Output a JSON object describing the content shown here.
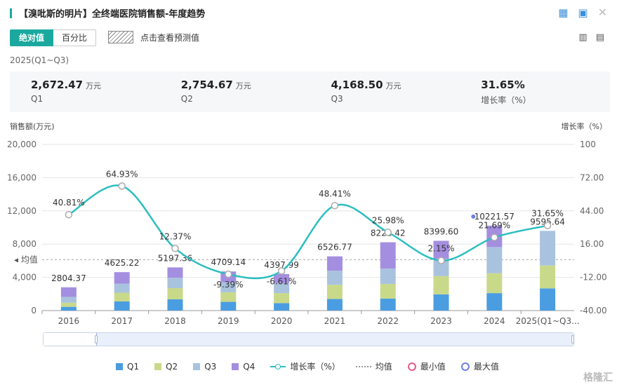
{
  "header": {
    "title": "【溴吡斯的明片】全终端医院销售额-年度趋势",
    "icons": [
      "excel-icon",
      "image-icon",
      "close-icon"
    ]
  },
  "toolbar": {
    "tab_absolute": "绝对值",
    "tab_percent": "百分比",
    "forecast_label": "点击查看预测值",
    "icons": [
      "bar-chart-icon",
      "table-icon"
    ]
  },
  "period": "2025(Q1~Q3)",
  "summary": [
    {
      "value": "2,672.47",
      "unit": "万元",
      "label": "Q1"
    },
    {
      "value": "2,754.67",
      "unit": "万元",
      "label": "Q2"
    },
    {
      "value": "4,168.50",
      "unit": "万元",
      "label": "Q3"
    },
    {
      "value": "31.65%",
      "unit": "",
      "label": "增长率（%）"
    }
  ],
  "axis": {
    "left_title": "销售额(万元)",
    "right_title": "增长率（%）",
    "left_ticks": [
      "0",
      "4,000",
      "8,000",
      "12,000",
      "16,000",
      "20,000"
    ],
    "right_ticks": [
      "-40.00",
      "-12.00",
      "16.00",
      "44.00",
      "72.00",
      "100"
    ],
    "avg_label": "均值"
  },
  "chart_data": {
    "type": "bar",
    "categories": [
      "2016",
      "2017",
      "2018",
      "2019",
      "2020",
      "2021",
      "2022",
      "2023",
      "2024",
      "2025(Q1~Q3..."
    ],
    "ylim": [
      0,
      20000
    ],
    "y2lim": [
      -40,
      100
    ],
    "series": [
      {
        "name": "Q1",
        "color": "#4a9de0",
        "values": [
          450,
          1100,
          1350,
          1050,
          900,
          1400,
          1450,
          1950,
          2100,
          2672.47
        ]
      },
      {
        "name": "Q2",
        "color": "#c9d98a",
        "values": [
          500,
          1050,
          1350,
          1150,
          1200,
          1700,
          1750,
          2200,
          2400,
          2754.67
        ]
      },
      {
        "name": "Q3",
        "color": "#a9c3de",
        "values": [
          700,
          1100,
          1250,
          1200,
          1200,
          1700,
          1850,
          2100,
          3150,
          4168.5
        ]
      },
      {
        "name": "Q4",
        "color": "#a48ee0",
        "values": [
          1154.37,
          1375.22,
          1247.36,
          1309.14,
          1097.99,
          1726.77,
          3172.42,
          2149.6,
          2571.57,
          0
        ]
      }
    ],
    "totals": [
      2804.37,
      4625.22,
      5197.36,
      4709.14,
      4397.99,
      6526.77,
      8222.42,
      8399.6,
      10221.57,
      9595.64
    ],
    "total_labels": [
      "2804.37",
      "4625.22",
      "5197.36",
      "4709.14",
      "4397.99",
      "6526.77",
      "8222.42",
      "8399.60",
      "10221.57",
      "9595.64"
    ],
    "growth": {
      "name": "增长率（%）",
      "color": "#2cbec0",
      "values": [
        40.81,
        64.93,
        12.37,
        -9.39,
        -6.61,
        48.41,
        25.98,
        2.15,
        21.69,
        31.65
      ],
      "labels": [
        "40.81%",
        "64.93%",
        "12.37%",
        "-9.39%",
        "-6.61%",
        "48.41%",
        "25.98%",
        "2.15%",
        "21.69%",
        "31.65%"
      ]
    },
    "average": 6120
  },
  "legend": [
    {
      "label": "Q1",
      "color": "#4a9de0",
      "kind": "box"
    },
    {
      "label": "Q2",
      "color": "#c9d98a",
      "kind": "box"
    },
    {
      "label": "Q3",
      "color": "#a9c3de",
      "kind": "box"
    },
    {
      "label": "Q4",
      "color": "#a48ee0",
      "kind": "box"
    },
    {
      "label": "增长率（%）",
      "color": "#2cbec0",
      "kind": "line"
    },
    {
      "label": "均值",
      "color": "#999999",
      "kind": "dash"
    },
    {
      "label": "最小值",
      "color": "#e85a8a",
      "kind": "ring"
    },
    {
      "label": "最大值",
      "color": "#6f7fe0",
      "kind": "ring"
    }
  ],
  "watermark": "格隆汇"
}
